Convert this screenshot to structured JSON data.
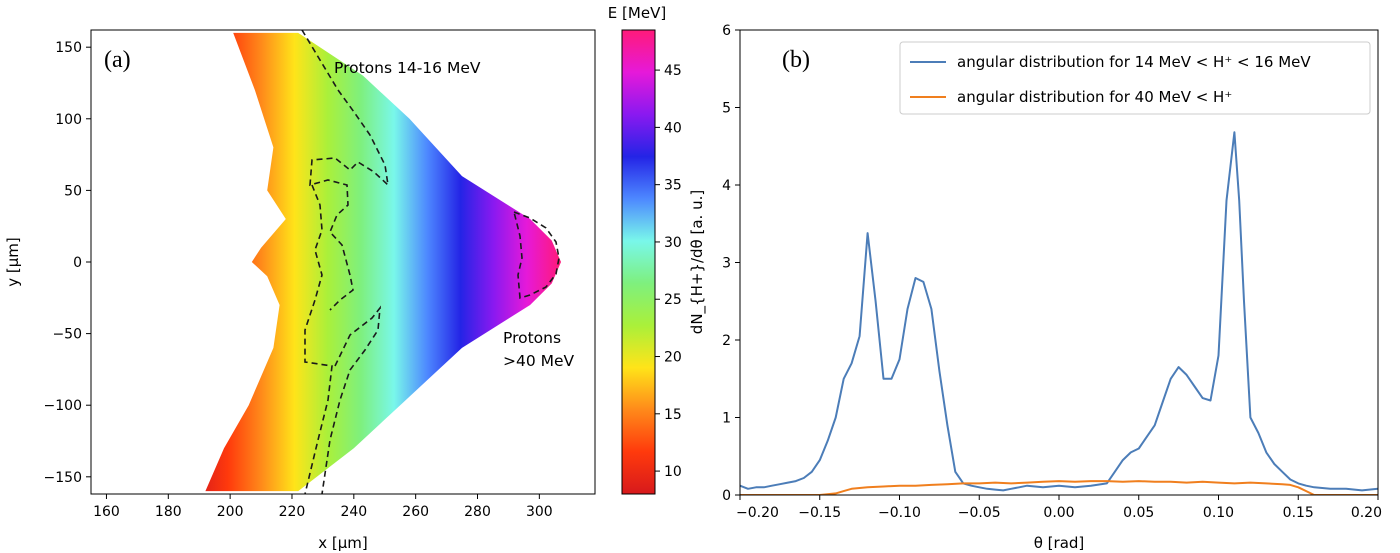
{
  "chart_data": [
    {
      "type": "heatmap",
      "panel_label": "(a)",
      "xlabel": "x [μm]",
      "ylabel": "y [μm]",
      "xlim": [
        155,
        318
      ],
      "ylim": [
        -162,
        162
      ],
      "x_ticks": [
        160,
        180,
        200,
        220,
        240,
        260,
        280,
        300
      ],
      "y_ticks": [
        -150,
        -100,
        -50,
        0,
        50,
        100,
        150
      ],
      "colorbar": {
        "label": "E [MeV]",
        "range": [
          8,
          48.5
        ],
        "ticks": [
          10,
          15,
          20,
          25,
          30,
          35,
          40,
          45
        ],
        "colormap": [
          "#d7191c",
          "#ff3a0c",
          "#ff8a1a",
          "#ffe419",
          "#aaf03a",
          "#7ef07e",
          "#79f7ea",
          "#4d88ff",
          "#2424e6",
          "#8a19f0",
          "#e619d9",
          "#ff1a7a"
        ]
      },
      "annotations": [
        {
          "text": "Protons 14-16 MeV",
          "x": 235,
          "y": 136
        },
        {
          "text": "Protons",
          "x": 290,
          "y": -55
        },
        {
          "text": ">40 MeV",
          "x": 290,
          "y": -75
        }
      ],
      "regions": [
        {
          "name": "protons 14-16 MeV",
          "energy_min": 14,
          "energy_max": 16,
          "style": "dashed"
        },
        {
          "name": "protons >40 MeV",
          "energy_min": 40,
          "style": "dashed"
        }
      ],
      "beam_envelope": {
        "left_edge_x": [
          [
            160,
            201
          ],
          [
            120,
            208
          ],
          [
            80,
            214
          ],
          [
            50,
            212
          ],
          [
            30,
            218
          ],
          [
            10,
            210
          ],
          [
            0,
            207
          ],
          [
            -10,
            212
          ],
          [
            -30,
            216
          ],
          [
            -60,
            214
          ],
          [
            -100,
            206
          ],
          [
            -130,
            198
          ],
          [
            -160,
            192
          ]
        ],
        "right_edge_x": [
          [
            160,
            222
          ],
          [
            130,
            243
          ],
          [
            100,
            258
          ],
          [
            60,
            275
          ],
          [
            30,
            297
          ],
          [
            15,
            304
          ],
          [
            0,
            307
          ],
          [
            -15,
            304
          ],
          [
            -30,
            297
          ],
          [
            -60,
            275
          ],
          [
            -100,
            255
          ],
          [
            -130,
            240
          ],
          [
            -160,
            222
          ]
        ]
      }
    },
    {
      "type": "line",
      "panel_label": "(b)",
      "xlabel": "θ [rad]",
      "ylabel": "dN_{H+}/dθ [a. u.]",
      "xlim": [
        -0.2,
        0.2
      ],
      "ylim": [
        0,
        6
      ],
      "x_ticks": [
        "−0.20",
        "−0.15",
        "−0.10",
        "−0.05",
        "0.00",
        "0.05",
        "0.10",
        "0.15",
        "0.20"
      ],
      "y_ticks": [
        0,
        1,
        2,
        3,
        4,
        5,
        6
      ],
      "legend_position": "top-right",
      "series": [
        {
          "name": "angular distribution for 14 MeV < H⁺ < 16 MeV",
          "color": "#4c7db8",
          "x": [
            -0.2,
            -0.195,
            -0.19,
            -0.185,
            -0.18,
            -0.175,
            -0.17,
            -0.165,
            -0.16,
            -0.155,
            -0.15,
            -0.145,
            -0.14,
            -0.135,
            -0.13,
            -0.125,
            -0.12,
            -0.115,
            -0.11,
            -0.105,
            -0.1,
            -0.095,
            -0.09,
            -0.085,
            -0.08,
            -0.075,
            -0.07,
            -0.065,
            -0.06,
            -0.055,
            -0.05,
            -0.045,
            -0.04,
            -0.035,
            -0.03,
            -0.025,
            -0.02,
            -0.01,
            0.0,
            0.01,
            0.02,
            0.03,
            0.035,
            0.04,
            0.045,
            0.05,
            0.055,
            0.06,
            0.065,
            0.07,
            0.075,
            0.08,
            0.085,
            0.09,
            0.095,
            0.1,
            0.105,
            0.11,
            0.113,
            0.116,
            0.12,
            0.125,
            0.13,
            0.135,
            0.14,
            0.145,
            0.15,
            0.155,
            0.16,
            0.17,
            0.18,
            0.19,
            0.2
          ],
          "values": [
            0.12,
            0.08,
            0.1,
            0.1,
            0.12,
            0.14,
            0.16,
            0.18,
            0.22,
            0.3,
            0.45,
            0.7,
            1.0,
            1.5,
            1.7,
            2.05,
            3.38,
            2.5,
            1.5,
            1.5,
            1.75,
            2.4,
            2.8,
            2.75,
            2.4,
            1.6,
            0.9,
            0.3,
            0.15,
            0.12,
            0.1,
            0.08,
            0.07,
            0.06,
            0.08,
            0.1,
            0.12,
            0.1,
            0.12,
            0.1,
            0.12,
            0.15,
            0.3,
            0.45,
            0.55,
            0.6,
            0.75,
            0.9,
            1.2,
            1.5,
            1.65,
            1.55,
            1.4,
            1.25,
            1.22,
            1.8,
            3.8,
            4.68,
            3.8,
            2.5,
            1.0,
            0.8,
            0.55,
            0.4,
            0.3,
            0.2,
            0.15,
            0.12,
            0.1,
            0.08,
            0.08,
            0.06,
            0.08
          ]
        },
        {
          "name": "angular distribution for 40 MeV < H⁺",
          "color": "#f07f1e",
          "x": [
            -0.2,
            -0.15,
            -0.14,
            -0.135,
            -0.13,
            -0.12,
            -0.11,
            -0.1,
            -0.09,
            -0.08,
            -0.07,
            -0.06,
            -0.05,
            -0.04,
            -0.03,
            -0.02,
            -0.01,
            0.0,
            0.01,
            0.02,
            0.03,
            0.04,
            0.05,
            0.06,
            0.07,
            0.08,
            0.09,
            0.1,
            0.11,
            0.12,
            0.13,
            0.14,
            0.145,
            0.15,
            0.155,
            0.16,
            0.2
          ],
          "values": [
            0.0,
            0.0,
            0.02,
            0.05,
            0.08,
            0.1,
            0.11,
            0.12,
            0.12,
            0.13,
            0.14,
            0.15,
            0.15,
            0.16,
            0.15,
            0.16,
            0.17,
            0.18,
            0.17,
            0.18,
            0.18,
            0.17,
            0.18,
            0.17,
            0.17,
            0.16,
            0.17,
            0.16,
            0.15,
            0.16,
            0.15,
            0.14,
            0.13,
            0.1,
            0.05,
            0.0,
            0.0
          ]
        }
      ]
    }
  ]
}
